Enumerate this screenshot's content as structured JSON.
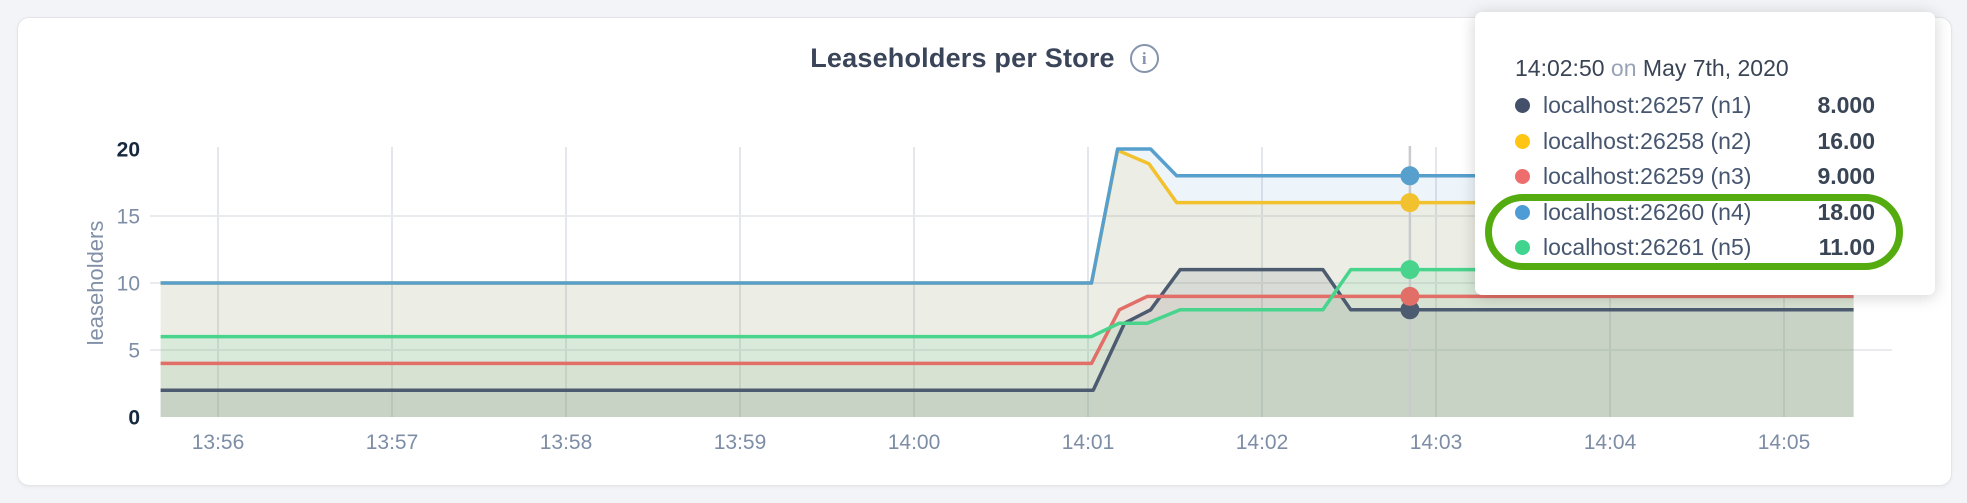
{
  "page": {
    "background_color": "#F3F4F7",
    "card_color": "#FFFFFF"
  },
  "header": {
    "title": "Leaseholders per Store",
    "info_icon_glyph": "i"
  },
  "axes": {
    "y_label": "leaseholders",
    "y_ticks": [
      {
        "v": 0,
        "label": "0",
        "bold": true,
        "grid": false
      },
      {
        "v": 5,
        "label": "5",
        "bold": false,
        "grid": true
      },
      {
        "v": 10,
        "label": "10",
        "bold": false,
        "grid": true
      },
      {
        "v": 15,
        "label": "15",
        "bold": false,
        "grid": true
      },
      {
        "v": 20,
        "label": "20",
        "bold": true,
        "grid": false
      }
    ],
    "x_ticks": [
      {
        "t": 1,
        "label": "13:56"
      },
      {
        "t": 2,
        "label": "13:57"
      },
      {
        "t": 3,
        "label": "13:58"
      },
      {
        "t": 4,
        "label": "13:59"
      },
      {
        "t": 5,
        "label": "14:00"
      },
      {
        "t": 6,
        "label": "14:01"
      },
      {
        "t": 7,
        "label": "14:02"
      },
      {
        "t": 8,
        "label": "14:03"
      },
      {
        "t": 9,
        "label": "14:04"
      },
      {
        "t": 10,
        "label": "14:05"
      }
    ]
  },
  "chart_data": {
    "type": "line",
    "title": "Leaseholders per Store",
    "ylabel": "leaseholders",
    "xlabel": "",
    "ylim": [
      0,
      20
    ],
    "xlim": [
      0.67,
      10.4
    ],
    "x_unit": "minutes after 13:55",
    "grid": true,
    "legend_position": "hover-tooltip",
    "x_tick_labels": [
      "13:56",
      "13:57",
      "13:58",
      "13:59",
      "14:00",
      "14:01",
      "14:02",
      "14:03",
      "14:04",
      "14:05"
    ],
    "y_tick_labels": [
      0,
      5,
      10,
      15,
      20
    ],
    "series": [
      {
        "node": "n1",
        "name": "localhost:26257 (n1)",
        "color": "#4C5B70",
        "fill_opacity": 0.13,
        "points": [
          [
            0.67,
            2
          ],
          [
            6.03,
            2
          ],
          [
            6.21,
            7
          ],
          [
            6.36,
            8
          ],
          [
            6.53,
            11
          ],
          [
            7.35,
            11
          ],
          [
            7.51,
            8
          ],
          [
            10.4,
            8
          ]
        ]
      },
      {
        "node": "n2",
        "name": "localhost:26258 (n2)",
        "color": "#F2C12E",
        "fill_opacity": 0.11,
        "points": [
          [
            0.67,
            10
          ],
          [
            6.02,
            10
          ],
          [
            6.17,
            19.9
          ],
          [
            6.35,
            18.9
          ],
          [
            6.51,
            16
          ],
          [
            10.4,
            16
          ]
        ]
      },
      {
        "node": "n3",
        "name": "localhost:26259 (n3)",
        "color": "#E26E68",
        "fill_opacity": 0.07,
        "points": [
          [
            0.67,
            4
          ],
          [
            6.02,
            4
          ],
          [
            6.18,
            8
          ],
          [
            6.34,
            9
          ],
          [
            10.4,
            9
          ]
        ]
      },
      {
        "node": "n4",
        "name": "localhost:26260 (n4)",
        "color": "#579FCD",
        "fill_opacity": 0.11,
        "points": [
          [
            0.67,
            10
          ],
          [
            6.02,
            10
          ],
          [
            6.17,
            20
          ],
          [
            6.36,
            20
          ],
          [
            6.51,
            18
          ],
          [
            10.4,
            18
          ]
        ]
      },
      {
        "node": "n5",
        "name": "localhost:26261 (n5)",
        "color": "#49D48D",
        "fill_opacity": 0.11,
        "points": [
          [
            0.67,
            6
          ],
          [
            6.02,
            6
          ],
          [
            6.18,
            7
          ],
          [
            6.34,
            7
          ],
          [
            6.53,
            8
          ],
          [
            7.35,
            8
          ],
          [
            7.51,
            11
          ],
          [
            10.4,
            11
          ]
        ]
      }
    ],
    "hover": {
      "t": 7.85,
      "time": "14:02:50",
      "date": "May 7th, 2020",
      "values": {
        "n1": "8.000",
        "n2": "16.00",
        "n3": "9.000",
        "n4": "18.00",
        "n5": "11.00"
      }
    }
  },
  "tooltip": {
    "time": "14:02:50",
    "on_word": "on",
    "date": "May 7th, 2020",
    "rows": [
      {
        "label": "localhost:26257 (n1)",
        "value": "8.000",
        "color": "#44506A"
      },
      {
        "label": "localhost:26258 (n2)",
        "value": "16.00",
        "color": "#FFC513"
      },
      {
        "label": "localhost:26259 (n3)",
        "value": "9.000",
        "color": "#EE6D6D"
      },
      {
        "label": "localhost:26260 (n4)",
        "value": "18.00",
        "color": "#4E9CD5"
      },
      {
        "label": "localhost:26261 (n5)",
        "value": "11.00",
        "color": "#40D48F"
      }
    ],
    "highlight_ring_color": "#55AC10",
    "highlighted_rows": [
      3,
      4
    ]
  }
}
